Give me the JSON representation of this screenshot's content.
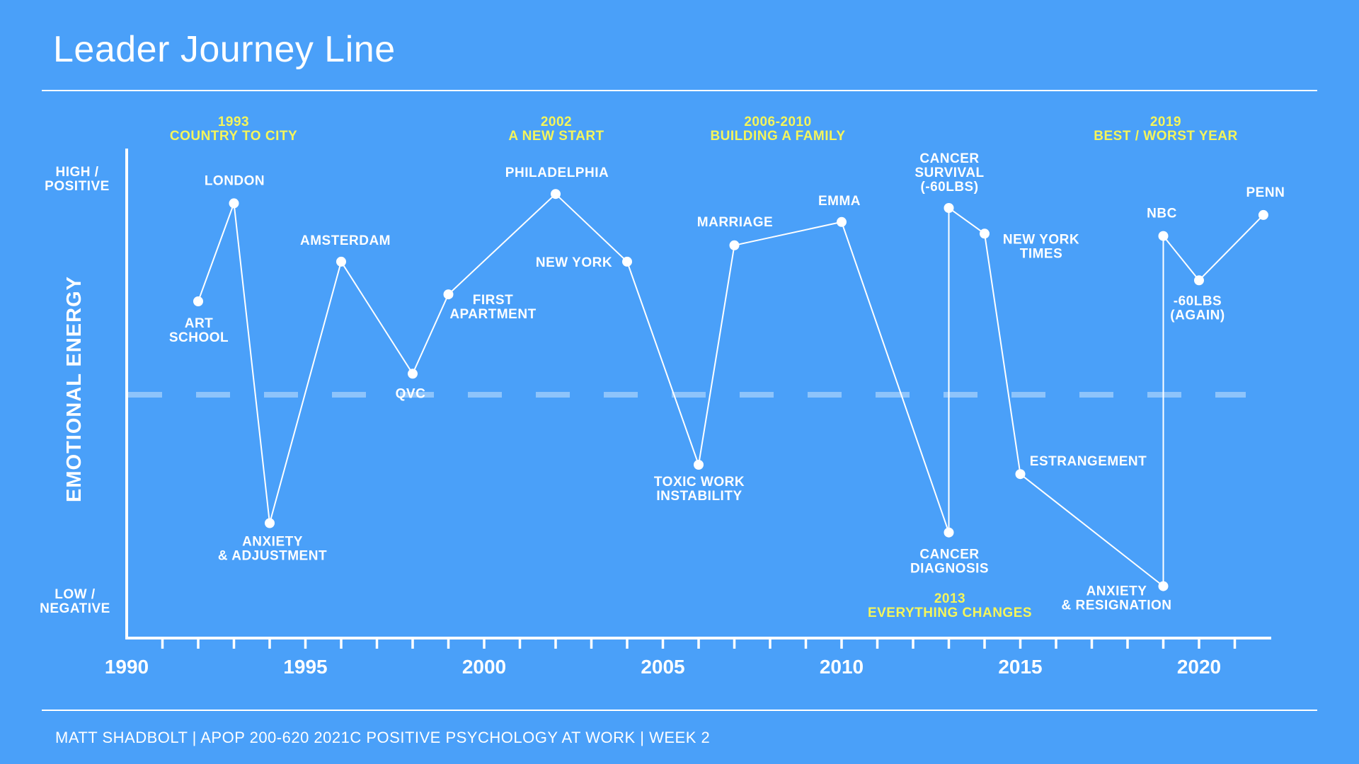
{
  "page": {
    "title": "Leader Journey Line",
    "footer": "MATT SHADBOLT | APOP 200-620 2021C POSITIVE PSYCHOLOGY AT WORK | WEEK 2"
  },
  "colors": {
    "background": "#4AA0F9",
    "line": "#FFFFFF",
    "highlight": "#F5F55A",
    "dashed_baseline": "#8EC4FB"
  },
  "chart_data": {
    "type": "line",
    "title": "Leader Journey Line",
    "xlabel": "",
    "ylabel": "EMOTIONAL ENERGY",
    "y_high_label": [
      "HIGH /",
      "POSITIVE"
    ],
    "y_low_label": [
      "LOW /",
      "NEGATIVE"
    ],
    "xlim": [
      1990,
      2022
    ],
    "ylim": [
      -10,
      10
    ],
    "x_ticks": [
      1990,
      1995,
      2000,
      2005,
      2010,
      2015,
      2020
    ],
    "x_minor_step": 1,
    "baseline": 0,
    "grid": false,
    "legend": "none",
    "series": [
      {
        "name": "Emotional energy",
        "points": [
          {
            "year": 1992,
            "value": 4.0,
            "label": [
              "ART",
              "SCHOOL"
            ]
          },
          {
            "year": 1993,
            "value": 8.2,
            "label": [
              "LONDON"
            ]
          },
          {
            "year": 1994,
            "value": -5.5,
            "label": [
              "ANXIETY",
              "& ADJUSTMENT"
            ]
          },
          {
            "year": 1996,
            "value": 5.7,
            "label": [
              "AMSTERDAM"
            ]
          },
          {
            "year": 1998,
            "value": 0.9,
            "label": [
              "QVC"
            ]
          },
          {
            "year": 1999,
            "value": 4.3,
            "label": [
              "FIRST",
              "APARTMENT"
            ]
          },
          {
            "year": 2002,
            "value": 8.6,
            "label": [
              "PHILADELPHIA"
            ]
          },
          {
            "year": 2004,
            "value": 5.7,
            "label": [
              "NEW YORK"
            ]
          },
          {
            "year": 2006,
            "value": -3.0,
            "label": [
              "TOXIC WORK",
              "INSTABILITY"
            ]
          },
          {
            "year": 2007,
            "value": 6.4,
            "label": [
              "MARRIAGE"
            ]
          },
          {
            "year": 2010,
            "value": 7.4,
            "label": [
              "EMMA"
            ]
          },
          {
            "year": 2013,
            "value": -5.9,
            "label": [
              "CANCER",
              "DIAGNOSIS"
            ]
          },
          {
            "year": 2013,
            "value": 8.0,
            "label": [
              "CANCER",
              "SURVIVAL",
              "(-60LBS)"
            ]
          },
          {
            "year": 2014,
            "value": 6.9,
            "label": [
              "NEW YORK",
              "TIMES"
            ]
          },
          {
            "year": 2015,
            "value": -3.4,
            "label": [
              "ESTRANGEMENT"
            ]
          },
          {
            "year": 2019,
            "value": -8.2,
            "label": [
              "ANXIETY",
              "& RESIGNATION"
            ]
          },
          {
            "year": 2019,
            "value": 6.8,
            "label": [
              "NBC"
            ]
          },
          {
            "year": 2020,
            "value": 4.9,
            "label": [
              "-60LBS",
              "(AGAIN)"
            ]
          },
          {
            "year": 2021.8,
            "value": 7.7,
            "label": [
              "PENN"
            ]
          }
        ]
      }
    ],
    "annotations": [
      {
        "lines": [
          "1993",
          "COUNTRY TO CITY"
        ]
      },
      {
        "lines": [
          "2002",
          "A NEW START"
        ]
      },
      {
        "lines": [
          "2006-2010",
          "BUILDING A FAMILY"
        ]
      },
      {
        "lines": [
          "2019",
          "BEST / WORST YEAR"
        ]
      },
      {
        "lines": [
          "2013",
          "EVERYTHING CHANGES"
        ]
      }
    ]
  }
}
